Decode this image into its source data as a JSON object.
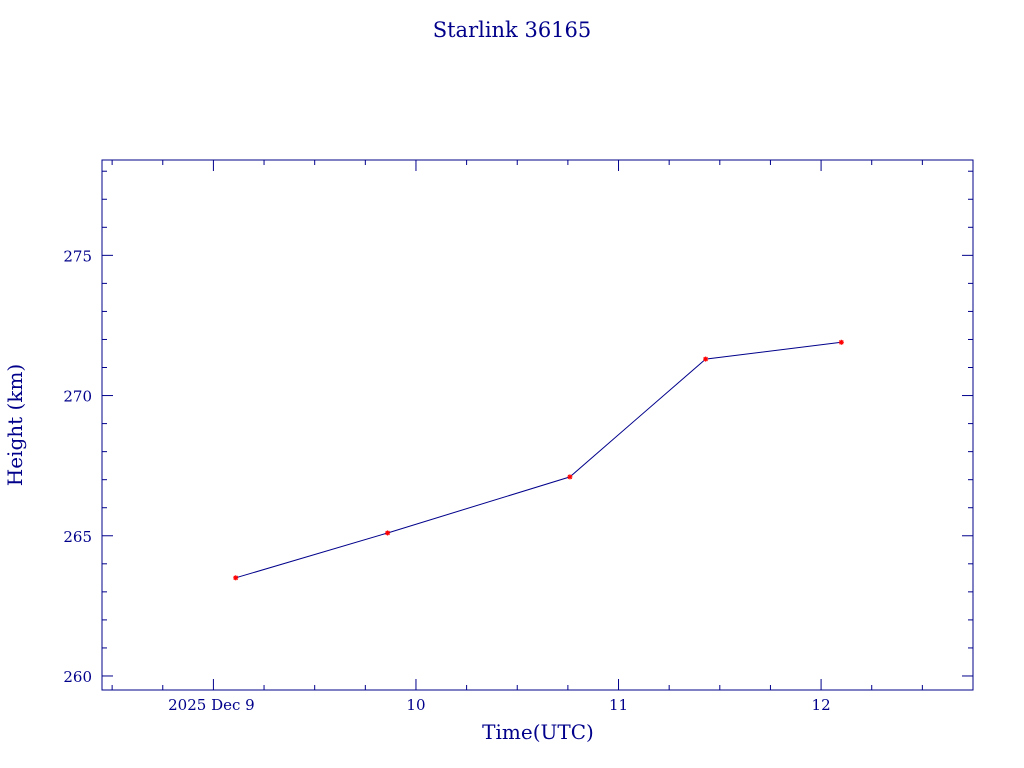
{
  "chart_data": {
    "type": "line",
    "title": "Starlink 36165",
    "xlabel": "Time(UTC)",
    "ylabel": "Height (km)",
    "x_unit": "day of December 2025",
    "xlim": [
      8.45,
      12.75
    ],
    "ylim": [
      259.5,
      278.4
    ],
    "x_ticks": [
      {
        "value": 9,
        "label": "2025 Dec  9"
      },
      {
        "value": 10,
        "label": "10"
      },
      {
        "value": 11,
        "label": "11"
      },
      {
        "value": 12,
        "label": "12"
      }
    ],
    "x_minor_step": 0.25,
    "y_ticks": [
      {
        "value": 260,
        "label": "260"
      },
      {
        "value": 265,
        "label": "265"
      },
      {
        "value": 270,
        "label": "270"
      },
      {
        "value": 275,
        "label": "275"
      }
    ],
    "y_minor_step": 1,
    "grid": false,
    "series": [
      {
        "x": [
          9.11,
          9.86,
          10.76,
          11.43,
          12.1
        ],
        "y": [
          263.5,
          265.1,
          267.1,
          271.3,
          271.9
        ]
      }
    ],
    "colors": {
      "axes": "#00008b",
      "line": "#00008b",
      "markers": "#ff0000"
    }
  }
}
